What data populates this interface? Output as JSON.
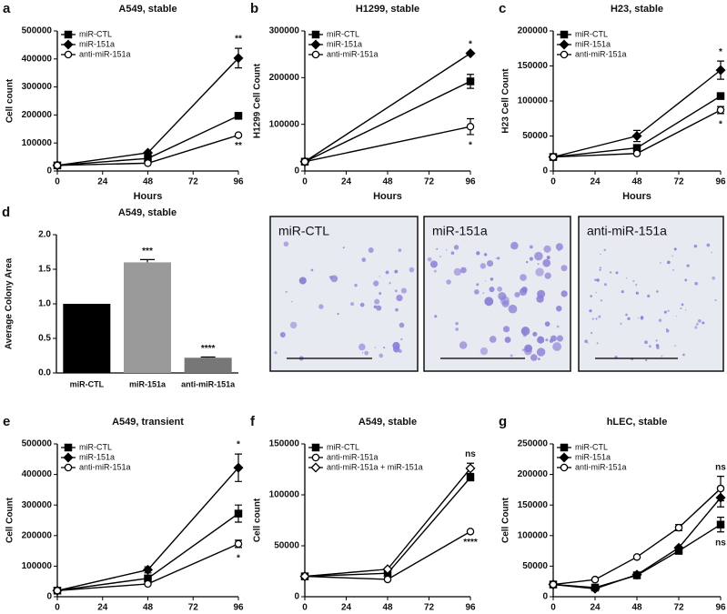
{
  "chart_data": [
    {
      "type": "line",
      "panel": "a",
      "title": "A549, stable",
      "xlabel": "Hours",
      "ylabel": "Cell count",
      "x": [
        0,
        48,
        96
      ],
      "xlim": [
        0,
        96
      ],
      "xticks": [
        0,
        24,
        48,
        72,
        96
      ],
      "ylim": [
        0,
        500000
      ],
      "yticks": [
        0,
        100000,
        200000,
        300000,
        400000,
        500000
      ],
      "legend": "upper left",
      "series": [
        {
          "name": "miR-CTL",
          "marker": "square",
          "color": "#000000",
          "values": [
            20000,
            45000,
            197000
          ],
          "errors": [
            null,
            null,
            null
          ]
        },
        {
          "name": "miR-151a",
          "marker": "diamond",
          "color": "#000000",
          "values": [
            20000,
            65000,
            403000
          ],
          "errors": [
            null,
            null,
            35000
          ]
        },
        {
          "name": "anti-miR-151a",
          "marker": "circle-open",
          "color": "#000000",
          "values": [
            20000,
            28000,
            128000
          ],
          "errors": [
            null,
            null,
            null
          ]
        }
      ],
      "annotations": [
        "**",
        "**"
      ]
    },
    {
      "type": "line",
      "panel": "b",
      "title": "H1299, stable",
      "xlabel": "Hours",
      "ylabel": "H1299 Cell Count",
      "x": [
        0,
        96
      ],
      "xlim": [
        0,
        96
      ],
      "xticks": [
        0,
        24,
        48,
        72,
        96
      ],
      "ylim": [
        0,
        300000
      ],
      "yticks": [
        0,
        100000,
        200000,
        300000
      ],
      "legend": "upper left",
      "series": [
        {
          "name": "miR-CTL",
          "marker": "square",
          "color": "#000000",
          "values": [
            20000,
            192000
          ],
          "errors": [
            null,
            15000
          ]
        },
        {
          "name": "miR-151a",
          "marker": "diamond",
          "color": "#000000",
          "values": [
            20000,
            252000
          ],
          "errors": [
            null,
            null
          ]
        },
        {
          "name": "anti-miR-151a",
          "marker": "circle-open",
          "color": "#000000",
          "values": [
            20000,
            95000
          ],
          "errors": [
            null,
            17000
          ]
        }
      ],
      "annotations": [
        "*",
        "*"
      ]
    },
    {
      "type": "line",
      "panel": "c",
      "title": "H23, stable",
      "xlabel": "Hours",
      "ylabel": "H23 Cell Count",
      "x": [
        0,
        48,
        96
      ],
      "xlim": [
        0,
        96
      ],
      "xticks": [
        0,
        24,
        48,
        72,
        96
      ],
      "ylim": [
        0,
        200000
      ],
      "yticks": [
        0,
        50000,
        100000,
        150000,
        200000
      ],
      "legend": "upper left",
      "series": [
        {
          "name": "miR-CTL",
          "marker": "square",
          "color": "#000000",
          "values": [
            20000,
            33000,
            107000
          ],
          "errors": [
            null,
            null,
            null
          ]
        },
        {
          "name": "miR-151a",
          "marker": "diamond",
          "color": "#000000",
          "values": [
            20000,
            50000,
            144000
          ],
          "errors": [
            null,
            8000,
            13000
          ]
        },
        {
          "name": "anti-miR-151a",
          "marker": "circle-open",
          "color": "#000000",
          "values": [
            20000,
            25000,
            87000
          ],
          "errors": [
            null,
            null,
            5000
          ]
        }
      ],
      "annotations": [
        "*",
        "*"
      ]
    },
    {
      "type": "bar",
      "panel": "d",
      "title": "A549, stable",
      "ylabel": "Average Colony Area",
      "categories": [
        "miR-CTL",
        "miR-151a",
        "anti-miR-151a"
      ],
      "values": [
        1.0,
        1.6,
        0.22
      ],
      "errors": [
        null,
        0.04,
        0.01
      ],
      "colors": [
        "#000000",
        "#9a9a9a",
        "#777777"
      ],
      "ylim": [
        0,
        2.0
      ],
      "yticks": [
        {
          "value": 0,
          "label": "0.0"
        },
        {
          "value": 0.5,
          "label": "0.5"
        },
        {
          "value": 1.0,
          "label": "1.0"
        },
        {
          "value": 1.5,
          "label": "1.5"
        },
        {
          "value": 2.0,
          "label": "2.0"
        }
      ],
      "annotations": [
        null,
        "***",
        "****"
      ]
    },
    {
      "type": "line",
      "panel": "e",
      "title": "A549, transient",
      "xlabel": "Hours",
      "ylabel": "Cell Count",
      "x": [
        0,
        48,
        96
      ],
      "xlim": [
        0,
        96
      ],
      "xticks": [
        0,
        24,
        48,
        72,
        96
      ],
      "ylim": [
        0,
        500000
      ],
      "yticks": [
        0,
        100000,
        200000,
        300000,
        400000,
        500000
      ],
      "legend": "upper left",
      "series": [
        {
          "name": "miR-CTL",
          "marker": "square",
          "color": "#000000",
          "values": [
            20000,
            60000,
            272000
          ],
          "errors": [
            null,
            null,
            28000
          ]
        },
        {
          "name": "miR-151a",
          "marker": "diamond",
          "color": "#000000",
          "values": [
            20000,
            88000,
            422000
          ],
          "errors": [
            null,
            10000,
            45000
          ]
        },
        {
          "name": "anti-miR-151a",
          "marker": "circle-open",
          "color": "#000000",
          "values": [
            20000,
            42000,
            173000
          ],
          "errors": [
            null,
            null,
            12000
          ]
        }
      ],
      "annotations": [
        "*",
        "*"
      ]
    },
    {
      "type": "line",
      "panel": "f",
      "title": "A549, stable",
      "xlabel": "Hours",
      "ylabel": "Cell count",
      "x": [
        0,
        48,
        96
      ],
      "xlim": [
        0,
        96
      ],
      "xticks": [
        0,
        24,
        48,
        72,
        96
      ],
      "ylim": [
        0,
        150000
      ],
      "yticks": [
        0,
        50000,
        100000,
        150000
      ],
      "legend": "upper left",
      "series": [
        {
          "name": "miR-CTL",
          "marker": "square",
          "color": "#000000",
          "values": [
            20000,
            23000,
            117000
          ],
          "errors": [
            null,
            null,
            null
          ]
        },
        {
          "name": "anti-miR-151a",
          "marker": "circle-open",
          "color": "#000000",
          "values": [
            20000,
            17000,
            64000
          ],
          "errors": [
            null,
            null,
            null
          ]
        },
        {
          "name": "anti-miR-151a + miR-151a",
          "marker": "diamond-open",
          "color": "#000000",
          "values": [
            20000,
            27000,
            126000
          ],
          "errors": [
            null,
            null,
            5000
          ]
        }
      ],
      "annotations": [
        "ns",
        "****"
      ]
    },
    {
      "type": "line",
      "panel": "g",
      "title": "hLEC, stable",
      "xlabel": "Hours",
      "ylabel": "Cell Count",
      "x": [
        0,
        24,
        48,
        72,
        96
      ],
      "xlim": [
        0,
        96
      ],
      "xticks": [
        0,
        24,
        48,
        72,
        96
      ],
      "ylim": [
        0,
        250000
      ],
      "yticks": [
        0,
        50000,
        100000,
        150000,
        200000,
        250000
      ],
      "legend": "upper left",
      "series": [
        {
          "name": "miR-CTL",
          "marker": "square",
          "color": "#000000",
          "values": [
            20000,
            15000,
            35000,
            75000,
            118000
          ],
          "errors": [
            null,
            null,
            null,
            null,
            12000
          ]
        },
        {
          "name": "miR-151a",
          "marker": "diamond",
          "color": "#000000",
          "values": [
            20000,
            13000,
            36000,
            80000,
            162000
          ],
          "errors": [
            null,
            null,
            null,
            null,
            15000
          ]
        },
        {
          "name": "anti-miR-151a",
          "marker": "circle-open",
          "color": "#000000",
          "values": [
            20000,
            28000,
            65000,
            113000,
            177000
          ],
          "errors": [
            null,
            null,
            null,
            5000,
            20000
          ]
        }
      ],
      "annotations": [
        "ns",
        "ns"
      ]
    }
  ],
  "images": [
    {
      "label": "miR-CTL"
    },
    {
      "label": "miR-151a"
    },
    {
      "label": "anti-miR-151a"
    }
  ]
}
